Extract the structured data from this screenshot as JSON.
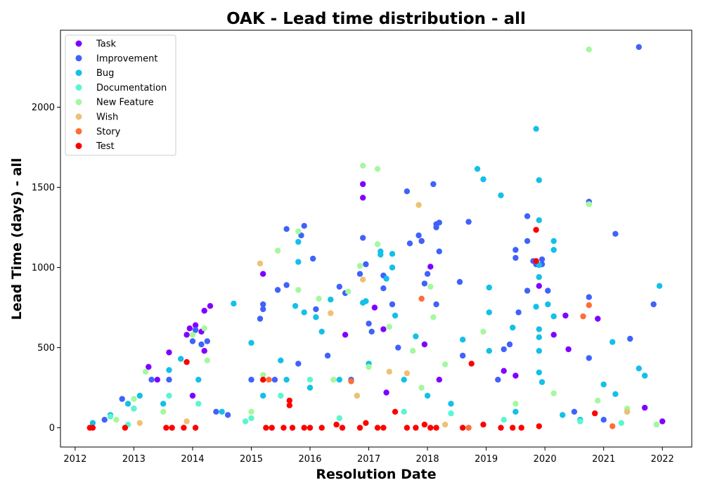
{
  "chart_data": {
    "type": "scatter",
    "title": "OAK - Lead time distribution - all",
    "xlabel": "Resolution Date",
    "ylabel": "Lead Time (days) - all",
    "xlim": [
      2011.75,
      2022.5
    ],
    "ylim": [
      -120,
      2480
    ],
    "x_ticks": [
      "2012",
      "2013",
      "2014",
      "2015",
      "2016",
      "2017",
      "2018",
      "2019",
      "2020",
      "2021",
      "2022"
    ],
    "y_ticks": [
      "0",
      "500",
      "1000",
      "1500",
      "2000"
    ],
    "grid": false,
    "legend_position": "top-left",
    "series": [
      {
        "name": "Task",
        "color": "#8000ff",
        "points": [
          [
            2013.25,
            380
          ],
          [
            2013.6,
            470
          ],
          [
            2013.95,
            620
          ],
          [
            2014.05,
            640
          ],
          [
            2014.15,
            600
          ],
          [
            2014.2,
            730
          ],
          [
            2014.3,
            760
          ],
          [
            2014.2,
            480
          ],
          [
            2013.9,
            580
          ],
          [
            2015.2,
            960
          ],
          [
            2016.9,
            1520
          ],
          [
            2016.9,
            1435
          ],
          [
            2017.25,
            615
          ],
          [
            2017.1,
            750
          ],
          [
            2017.9,
            1165
          ],
          [
            2017.95,
            520
          ],
          [
            2018.05,
            1005
          ],
          [
            2019.3,
            355
          ],
          [
            2019.5,
            325
          ],
          [
            2019.9,
            885
          ],
          [
            2020.15,
            580
          ],
          [
            2020.35,
            700
          ],
          [
            2020.4,
            490
          ],
          [
            2020.9,
            680
          ],
          [
            2021.7,
            125
          ],
          [
            2022.0,
            40
          ],
          [
            2013.4,
            300
          ],
          [
            2014.0,
            200
          ],
          [
            2016.6,
            580
          ],
          [
            2017.3,
            220
          ],
          [
            2018.2,
            300
          ]
        ]
      },
      {
        "name": "Improvement",
        "color": "#4062fa",
        "points": [
          [
            2014.0,
            540
          ],
          [
            2014.05,
            610
          ],
          [
            2014.15,
            520
          ],
          [
            2014.25,
            540
          ],
          [
            2015.2,
            770
          ],
          [
            2015.2,
            740
          ],
          [
            2015.15,
            680
          ],
          [
            2015.45,
            860
          ],
          [
            2015.6,
            1240
          ],
          [
            2015.6,
            890
          ],
          [
            2015.9,
            1260
          ],
          [
            2015.85,
            1200
          ],
          [
            2016.05,
            1055
          ],
          [
            2016.1,
            740
          ],
          [
            2016.5,
            880
          ],
          [
            2016.6,
            840
          ],
          [
            2016.9,
            1185
          ],
          [
            2016.95,
            1020
          ],
          [
            2016.85,
            960
          ],
          [
            2017.0,
            650
          ],
          [
            2017.05,
            600
          ],
          [
            2017.25,
            950
          ],
          [
            2017.25,
            870
          ],
          [
            2017.4,
            770
          ],
          [
            2017.65,
            1475
          ],
          [
            2017.7,
            1150
          ],
          [
            2017.85,
            1200
          ],
          [
            2017.9,
            1165
          ],
          [
            2017.95,
            900
          ],
          [
            2018.0,
            960
          ],
          [
            2018.1,
            1520
          ],
          [
            2018.15,
            1270
          ],
          [
            2018.2,
            1280
          ],
          [
            2018.15,
            1250
          ],
          [
            2018.2,
            1100
          ],
          [
            2018.15,
            770
          ],
          [
            2018.55,
            910
          ],
          [
            2018.7,
            1285
          ],
          [
            2019.3,
            490
          ],
          [
            2019.4,
            520
          ],
          [
            2019.5,
            1110
          ],
          [
            2019.5,
            1060
          ],
          [
            2019.55,
            720
          ],
          [
            2019.7,
            1320
          ],
          [
            2019.7,
            1165
          ],
          [
            2019.7,
            855
          ],
          [
            2019.8,
            1040
          ],
          [
            2019.85,
            1020
          ],
          [
            2019.95,
            1050
          ],
          [
            2019.95,
            1020
          ],
          [
            2020.05,
            855
          ],
          [
            2020.75,
            1410
          ],
          [
            2020.75,
            815
          ],
          [
            2020.75,
            435
          ],
          [
            2021.2,
            1210
          ],
          [
            2021.45,
            555
          ],
          [
            2021.6,
            2375
          ],
          [
            2021.85,
            770
          ],
          [
            2012.5,
            50
          ],
          [
            2012.8,
            180
          ],
          [
            2013.0,
            120
          ],
          [
            2013.3,
            300
          ],
          [
            2013.6,
            300
          ],
          [
            2014.4,
            100
          ],
          [
            2014.6,
            80
          ],
          [
            2015.0,
            300
          ],
          [
            2015.4,
            300
          ],
          [
            2015.8,
            400
          ],
          [
            2016.3,
            450
          ],
          [
            2016.7,
            300
          ],
          [
            2017.5,
            500
          ],
          [
            2018.6,
            450
          ],
          [
            2019.2,
            300
          ],
          [
            2020.5,
            100
          ],
          [
            2021.0,
            50
          ]
        ]
      },
      {
        "name": "Bug",
        "color": "#13c0e8",
        "points": [
          [
            2013.6,
            360
          ],
          [
            2013.8,
            430
          ],
          [
            2014.7,
            775
          ],
          [
            2015.0,
            530
          ],
          [
            2015.5,
            420
          ],
          [
            2015.75,
            760
          ],
          [
            2015.8,
            1160
          ],
          [
            2015.8,
            1035
          ],
          [
            2015.9,
            720
          ],
          [
            2016.1,
            690
          ],
          [
            2016.2,
            600
          ],
          [
            2016.35,
            800
          ],
          [
            2016.9,
            780
          ],
          [
            2016.95,
            790
          ],
          [
            2017.2,
            1100
          ],
          [
            2017.2,
            1080
          ],
          [
            2017.3,
            930
          ],
          [
            2017.4,
            1085
          ],
          [
            2017.4,
            1000
          ],
          [
            2017.45,
            700
          ],
          [
            2017.8,
            570
          ],
          [
            2018.6,
            550
          ],
          [
            2018.85,
            1615
          ],
          [
            2018.95,
            1550
          ],
          [
            2019.05,
            875
          ],
          [
            2019.05,
            720
          ],
          [
            2019.05,
            480
          ],
          [
            2019.25,
            1450
          ],
          [
            2019.45,
            625
          ],
          [
            2019.85,
            1865
          ],
          [
            2019.9,
            1545
          ],
          [
            2019.9,
            1295
          ],
          [
            2019.9,
            1015
          ],
          [
            2019.9,
            940
          ],
          [
            2019.9,
            615
          ],
          [
            2019.85,
            755
          ],
          [
            2019.9,
            565
          ],
          [
            2019.9,
            480
          ],
          [
            2019.9,
            345
          ],
          [
            2019.95,
            285
          ],
          [
            2020.05,
            770
          ],
          [
            2020.15,
            1165
          ],
          [
            2020.15,
            1110
          ],
          [
            2020.15,
            695
          ],
          [
            2021.0,
            270
          ],
          [
            2021.15,
            535
          ],
          [
            2021.2,
            210
          ],
          [
            2021.6,
            370
          ],
          [
            2021.7,
            325
          ],
          [
            2021.95,
            885
          ],
          [
            2012.3,
            30
          ],
          [
            2012.6,
            80
          ],
          [
            2012.9,
            150
          ],
          [
            2013.1,
            200
          ],
          [
            2013.5,
            150
          ],
          [
            2014.1,
            300
          ],
          [
            2014.5,
            100
          ],
          [
            2015.2,
            200
          ],
          [
            2015.6,
            300
          ],
          [
            2016.0,
            250
          ],
          [
            2016.5,
            300
          ],
          [
            2017.0,
            400
          ],
          [
            2017.6,
            300
          ],
          [
            2018.0,
            200
          ],
          [
            2018.4,
            150
          ],
          [
            2019.5,
            100
          ],
          [
            2020.3,
            80
          ],
          [
            2020.6,
            50
          ],
          [
            2021.4,
            100
          ]
        ]
      },
      {
        "name": "Documentation",
        "color": "#5bf6d0",
        "points": [
          [
            2012.6,
            70
          ],
          [
            2013.0,
            120
          ],
          [
            2013.6,
            200
          ],
          [
            2014.1,
            150
          ],
          [
            2015.0,
            60
          ],
          [
            2015.5,
            200
          ],
          [
            2016.0,
            300
          ],
          [
            2016.8,
            200
          ],
          [
            2017.6,
            100
          ],
          [
            2018.4,
            90
          ],
          [
            2019.3,
            50
          ],
          [
            2020.6,
            40
          ],
          [
            2021.3,
            30
          ],
          [
            2021.9,
            20
          ],
          [
            2012.9,
            20
          ],
          [
            2014.9,
            40
          ],
          [
            2016.5,
            60
          ]
        ]
      },
      {
        "name": "New Feature",
        "color": "#a4f89f",
        "points": [
          [
            2013.0,
            180
          ],
          [
            2013.2,
            350
          ],
          [
            2014.0,
            580
          ],
          [
            2014.2,
            620
          ],
          [
            2014.25,
            420
          ],
          [
            2015.2,
            330
          ],
          [
            2015.45,
            1105
          ],
          [
            2015.8,
            860
          ],
          [
            2015.8,
            1225
          ],
          [
            2016.15,
            805
          ],
          [
            2016.65,
            850
          ],
          [
            2016.9,
            1635
          ],
          [
            2016.85,
            1010
          ],
          [
            2017.15,
            1615
          ],
          [
            2017.15,
            1145
          ],
          [
            2017.35,
            630
          ],
          [
            2017.75,
            480
          ],
          [
            2018.05,
            880
          ],
          [
            2018.1,
            690
          ],
          [
            2018.3,
            395
          ],
          [
            2018.95,
            600
          ],
          [
            2020.15,
            215
          ],
          [
            2020.75,
            2360
          ],
          [
            2020.75,
            1395
          ],
          [
            2021.4,
            120
          ],
          [
            2021.9,
            20
          ],
          [
            2012.7,
            50
          ],
          [
            2013.5,
            100
          ],
          [
            2015.0,
            100
          ],
          [
            2016.4,
            300
          ],
          [
            2017.0,
            380
          ],
          [
            2017.9,
            250
          ],
          [
            2019.5,
            150
          ],
          [
            2020.9,
            170
          ]
        ]
      },
      {
        "name": "Wish",
        "color": "#eec173",
        "points": [
          [
            2015.15,
            1025
          ],
          [
            2016.35,
            715
          ],
          [
            2016.9,
            925
          ],
          [
            2017.35,
            350
          ],
          [
            2017.65,
            340
          ],
          [
            2017.85,
            1390
          ],
          [
            2013.1,
            30
          ],
          [
            2013.9,
            40
          ],
          [
            2015.2,
            300
          ],
          [
            2016.8,
            200
          ],
          [
            2018.3,
            20
          ],
          [
            2021.4,
            100
          ]
        ]
      },
      {
        "name": "Story",
        "color": "#ff6d38",
        "points": [
          [
            2017.9,
            805
          ],
          [
            2020.65,
            695
          ],
          [
            2020.75,
            765
          ],
          [
            2021.15,
            10
          ],
          [
            2015.3,
            300
          ],
          [
            2016.7,
            290
          ],
          [
            2018.7,
            0
          ]
        ]
      },
      {
        "name": "Test",
        "color": "#ff0000",
        "points": [
          [
            2012.25,
            0
          ],
          [
            2012.3,
            0
          ],
          [
            2012.85,
            0
          ],
          [
            2013.55,
            0
          ],
          [
            2013.65,
            0
          ],
          [
            2013.85,
            0
          ],
          [
            2013.9,
            410
          ],
          [
            2014.05,
            0
          ],
          [
            2015.2,
            300
          ],
          [
            2015.25,
            0
          ],
          [
            2015.35,
            0
          ],
          [
            2015.55,
            0
          ],
          [
            2015.65,
            170
          ],
          [
            2015.65,
            140
          ],
          [
            2015.7,
            0
          ],
          [
            2015.9,
            0
          ],
          [
            2016.0,
            0
          ],
          [
            2016.2,
            0
          ],
          [
            2016.45,
            20
          ],
          [
            2016.55,
            0
          ],
          [
            2016.85,
            0
          ],
          [
            2016.95,
            30
          ],
          [
            2017.15,
            0
          ],
          [
            2017.25,
            0
          ],
          [
            2017.45,
            100
          ],
          [
            2017.65,
            0
          ],
          [
            2017.8,
            0
          ],
          [
            2017.95,
            20
          ],
          [
            2018.05,
            0
          ],
          [
            2018.15,
            0
          ],
          [
            2018.6,
            0
          ],
          [
            2018.75,
            400
          ],
          [
            2018.95,
            20
          ],
          [
            2019.25,
            0
          ],
          [
            2019.45,
            0
          ],
          [
            2019.6,
            0
          ],
          [
            2019.85,
            1235
          ],
          [
            2019.85,
            1040
          ],
          [
            2019.9,
            10
          ],
          [
            2020.85,
            90
          ]
        ]
      }
    ]
  }
}
